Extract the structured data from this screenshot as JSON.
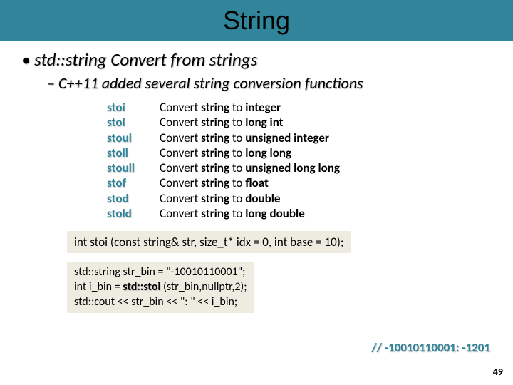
{
  "title": "String",
  "bullet_main": "• std::string Convert from strings",
  "bullet_sub": "– C++11 added several string conversion functions",
  "functions": [
    {
      "name": "stoi",
      "pre": "Convert ",
      "mid": "string",
      "mid2": " to ",
      "type": "integer"
    },
    {
      "name": "stol",
      "pre": "Convert ",
      "mid": "string",
      "mid2": " to ",
      "type": "long int"
    },
    {
      "name": "stoul",
      "pre": "Convert ",
      "mid": "string",
      "mid2": " to ",
      "type": "unsigned integer"
    },
    {
      "name": "stoll",
      "pre": "Convert ",
      "mid": "string",
      "mid2": " to ",
      "type": "long long"
    },
    {
      "name": "stoull",
      "pre": "Convert ",
      "mid": "string",
      "mid2": " to ",
      "type": "unsigned long long"
    },
    {
      "name": "stof",
      "pre": "Convert ",
      "mid": "string",
      "mid2": " to ",
      "type": "float"
    },
    {
      "name": "stod",
      "pre": "Convert ",
      "mid": "string",
      "mid2": " to ",
      "type": "double"
    },
    {
      "name": "stold",
      "pre": "Convert ",
      "mid": "string",
      "mid2": " to ",
      "type": "long double"
    }
  ],
  "signature": "int stoi (const string& str, size_t* idx = 0, int base = 10);",
  "code": {
    "l1a": "std::string  str_bin = \"-10010110001\";",
    "l2a": "int i_bin = ",
    "l2b": "std::stoi",
    "l2c": " (str_bin,nullptr,2);",
    "l3a": "std::cout << str_bin << \": \" << i_bin;"
  },
  "comment": "// -10010110001: -1201",
  "pagenum": "49",
  "colors": {
    "header_bg": "#31859b",
    "box_bg": "#eeece1",
    "accent": "#31859b"
  }
}
